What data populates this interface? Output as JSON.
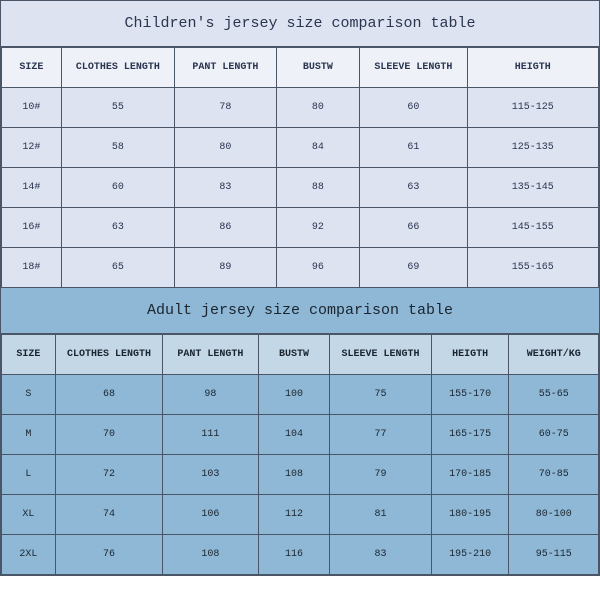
{
  "children": {
    "title": "Children's jersey size comparison table",
    "columns": [
      "SIZE",
      "CLOTHES LENGTH",
      "PANT LENGTH",
      "BUSTW",
      "SLEEVE LENGTH",
      "HEIGTH"
    ],
    "col_widths": [
      "10%",
      "19%",
      "17%",
      "14%",
      "18%",
      "22%"
    ],
    "rows": [
      [
        "10#",
        "55",
        "78",
        "80",
        "60",
        "115-125"
      ],
      [
        "12#",
        "58",
        "80",
        "84",
        "61",
        "125-135"
      ],
      [
        "14#",
        "60",
        "83",
        "88",
        "63",
        "135-145"
      ],
      [
        "16#",
        "63",
        "86",
        "92",
        "66",
        "145-155"
      ],
      [
        "18#",
        "65",
        "89",
        "96",
        "69",
        "155-165"
      ]
    ],
    "title_bg": "#dde3f0",
    "header_bg": "#eef1f8",
    "cell_bg": "#dde3f0",
    "border_color": "#4a5568",
    "text_color": "#2a3550",
    "title_fontsize": 15,
    "cell_fontsize": 10
  },
  "adult": {
    "title": "Adult jersey size comparison table",
    "columns": [
      "SIZE",
      "CLOTHES LENGTH",
      "PANT LENGTH",
      "BUSTW",
      "SLEEVE LENGTH",
      "HEIGTH",
      "WEIGHT/KG"
    ],
    "col_widths": [
      "9%",
      "18%",
      "16%",
      "12%",
      "17%",
      "13%",
      "15%"
    ],
    "rows": [
      [
        "S",
        "68",
        "98",
        "100",
        "75",
        "155-170",
        "55-65"
      ],
      [
        "M",
        "70",
        "111",
        "104",
        "77",
        "165-175",
        "60-75"
      ],
      [
        "L",
        "72",
        "103",
        "108",
        "79",
        "170-185",
        "70-85"
      ],
      [
        "XL",
        "74",
        "106",
        "112",
        "81",
        "180-195",
        "80-100"
      ],
      [
        "2XL",
        "76",
        "108",
        "116",
        "83",
        "195-210",
        "95-115"
      ]
    ],
    "title_bg": "#8fb8d6",
    "header_bg": "#c3d7e6",
    "cell_bg": "#8fb8d6",
    "border_color": "#4a5568",
    "text_color": "#1a2530",
    "title_fontsize": 15,
    "cell_fontsize": 10
  }
}
